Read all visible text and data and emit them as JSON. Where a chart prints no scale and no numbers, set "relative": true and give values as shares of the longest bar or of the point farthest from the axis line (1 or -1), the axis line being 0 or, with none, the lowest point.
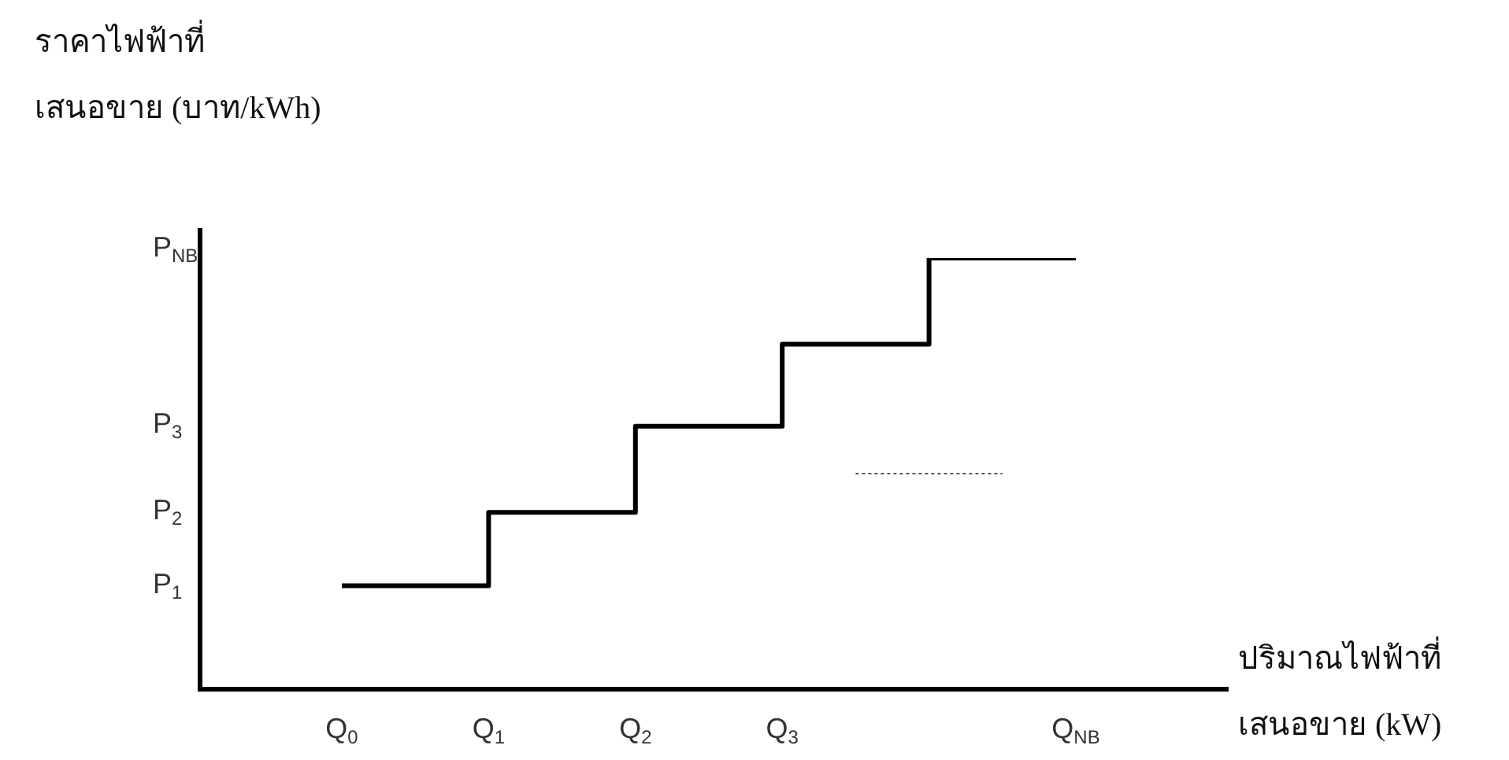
{
  "chart_data": {
    "type": "step",
    "relative": true,
    "ylabel": "ราคาไฟฟ้าที่\nเสนอขาย (บาท/kWh)",
    "xlabel": "ปริมาณไฟฟ้าที่\nเสนอขาย (kW)",
    "categories": [
      "Q$_{0}$",
      null,
      "Q$_{1}$",
      null,
      "Q$_{2}$",
      null,
      "Q$_{3}$",
      null,
      null,
      null,
      "Q$_{NB}$"
    ],
    "annotations": [
      "P$_{1}$",
      "P$_{2}$",
      "P$_{3}$",
      "P$_{NB}$"
    ],
    "grid": false,
    "legend": false,
    "marker": "none",
    "series": [
      {
        "color": "#000000",
        "line_style": "solid",
        "values": [
          0.24,
          null,
          0.41,
          null,
          0.61,
          null,
          0.8,
          null,
          1,
          null,
          1
        ]
      },
      {
        "type": "line",
        "color": "#555555",
        "line_style": "dotted",
        "values": [
          null,
          null,
          null,
          null,
          null,
          null,
          null,
          0.5,
          null,
          0.5,
          null
        ]
      }
    ]
  }
}
